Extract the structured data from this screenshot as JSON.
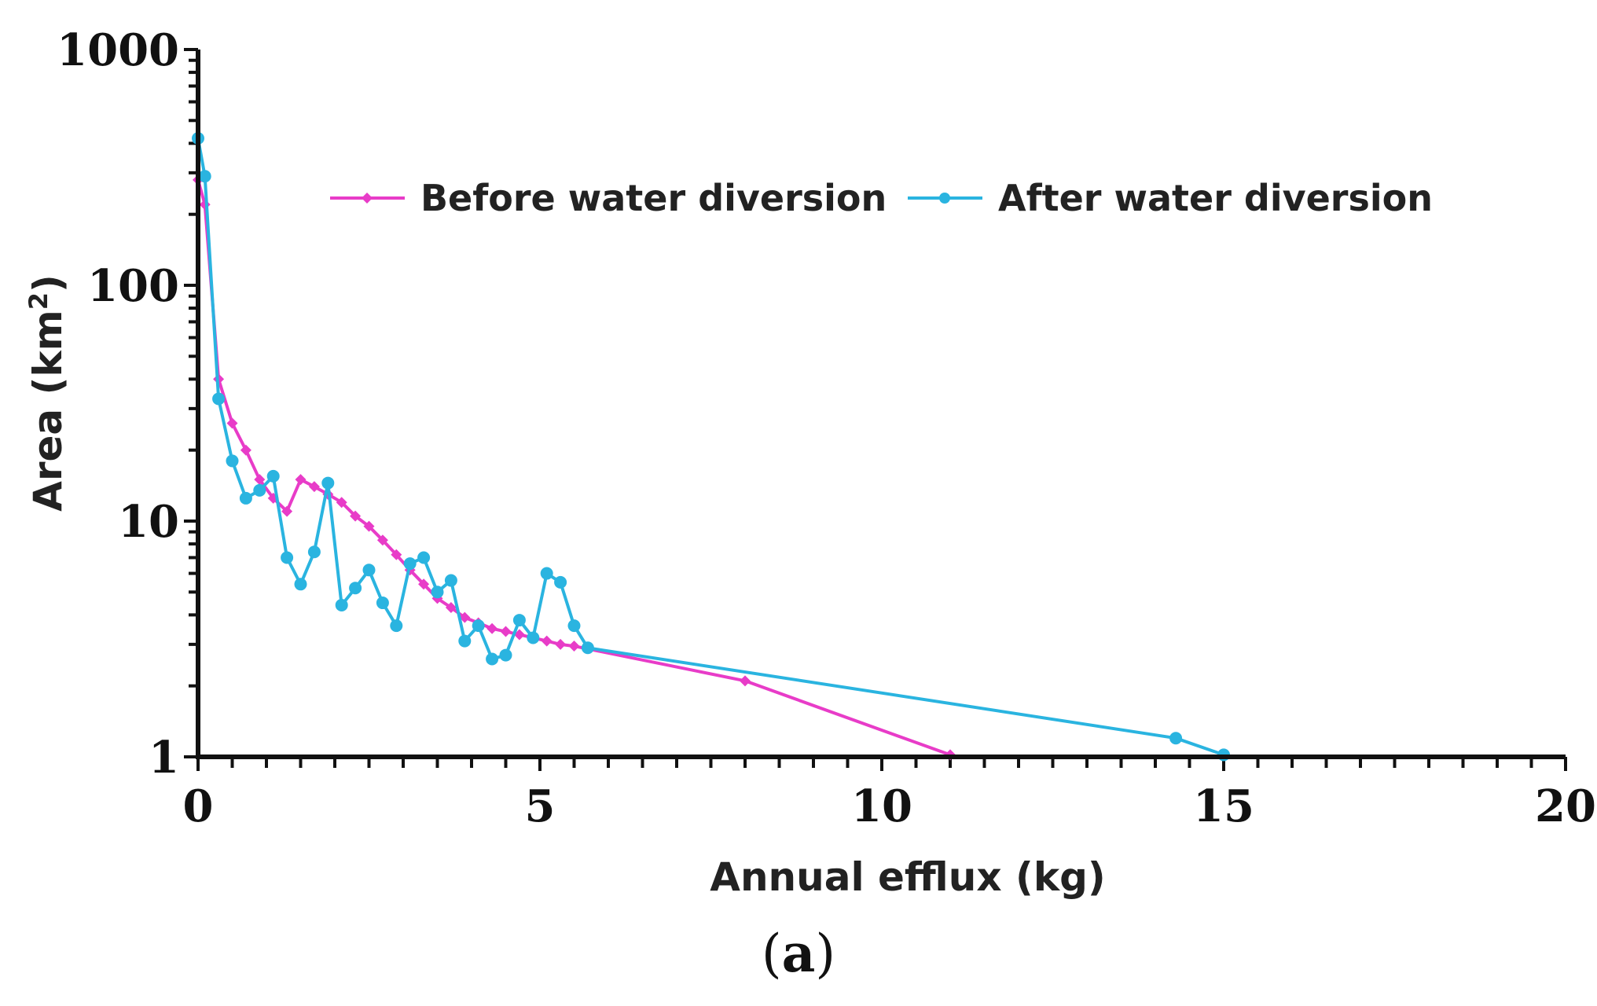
{
  "chart_data": {
    "type": "line",
    "title": "",
    "caption": {
      "open": "(",
      "letter": "a",
      "close": ")"
    },
    "xlabel": "Annual efflux (kg)",
    "ylabel": {
      "main": "Area (km",
      "sup": "2",
      "close": ")"
    },
    "xlim": [
      0,
      20
    ],
    "ylim": [
      1,
      1000
    ],
    "yscale": "log",
    "xticks": [
      0,
      5,
      10,
      15,
      20
    ],
    "xtick_labels": [
      "0",
      "5",
      "10",
      "15",
      "20"
    ],
    "yticks": [
      1,
      10,
      100,
      1000
    ],
    "ytick_labels": [
      "1",
      "10",
      "100",
      "1000"
    ],
    "legend_position": "top-center",
    "series": [
      {
        "name": "Before water diversion",
        "color": "#e83cc8",
        "marker": "diamond",
        "x": [
          0.0,
          0.1,
          0.3,
          0.5,
          0.7,
          0.9,
          1.1,
          1.3,
          1.5,
          1.7,
          1.9,
          2.1,
          2.3,
          2.5,
          2.7,
          2.9,
          3.1,
          3.3,
          3.5,
          3.7,
          3.9,
          4.1,
          4.3,
          4.5,
          4.7,
          4.9,
          5.1,
          5.3,
          5.5,
          8.0,
          11.0
        ],
        "y": [
          280,
          220,
          40,
          26,
          20,
          15,
          12.5,
          11,
          15,
          14,
          13,
          12,
          10.5,
          9.5,
          8.3,
          7.2,
          6.2,
          5.4,
          4.7,
          4.3,
          3.9,
          3.7,
          3.5,
          3.4,
          3.3,
          3.2,
          3.1,
          3.0,
          2.95,
          2.1,
          1.02
        ]
      },
      {
        "name": "After water diversion",
        "color": "#2ab4e0",
        "marker": "circle",
        "x": [
          0.0,
          0.1,
          0.3,
          0.5,
          0.7,
          0.9,
          1.1,
          1.3,
          1.5,
          1.7,
          1.9,
          2.1,
          2.3,
          2.5,
          2.7,
          2.9,
          3.1,
          3.3,
          3.5,
          3.7,
          3.9,
          4.1,
          4.3,
          4.5,
          4.7,
          4.9,
          5.1,
          5.3,
          5.5,
          5.7,
          14.3,
          15.0
        ],
        "y": [
          420,
          290,
          33,
          18,
          12.5,
          13.5,
          15.5,
          7,
          5.4,
          7.4,
          14.5,
          4.4,
          5.2,
          6.2,
          4.5,
          3.6,
          6.6,
          7,
          5,
          5.6,
          3.1,
          3.6,
          2.6,
          2.7,
          3.8,
          3.2,
          6,
          5.5,
          3.6,
          2.9,
          1.2,
          1.02
        ]
      }
    ]
  }
}
